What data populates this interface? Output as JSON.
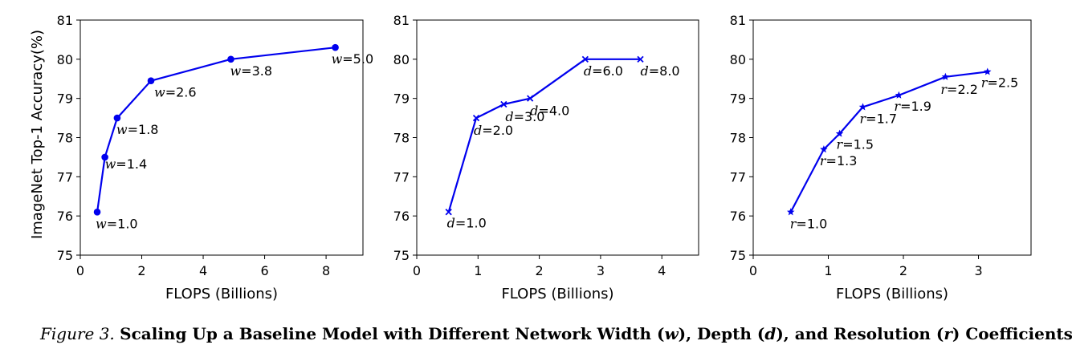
{
  "chart_data": [
    {
      "type": "line",
      "xlabel": "FLOPS (Billions)",
      "ylabel": "ImageNet Top-1 Accuracy(%)",
      "xlim": [
        0,
        9.2
      ],
      "ylim": [
        75,
        81
      ],
      "xticks": [
        0,
        2,
        4,
        6,
        8
      ],
      "yticks": [
        75,
        76,
        77,
        78,
        79,
        80,
        81
      ],
      "marker": "circle",
      "color": "#0000ee",
      "grid": false,
      "var": "w",
      "points": [
        {
          "x": 0.55,
          "y": 76.1,
          "label": "=1.0"
        },
        {
          "x": 0.8,
          "y": 77.5,
          "label": "=1.4"
        },
        {
          "x": 1.2,
          "y": 78.5,
          "label": "=1.8"
        },
        {
          "x": 2.3,
          "y": 79.45,
          "label": "=2.6"
        },
        {
          "x": 4.9,
          "y": 80.0,
          "label": "=3.8"
        },
        {
          "x": 8.3,
          "y": 80.3,
          "label": "=5.0"
        }
      ]
    },
    {
      "type": "line",
      "xlabel": "FLOPS (Billions)",
      "ylabel": "",
      "xlim": [
        0,
        4.6
      ],
      "ylim": [
        75,
        81
      ],
      "xticks": [
        0,
        1,
        2,
        3,
        4
      ],
      "yticks": [
        75,
        76,
        77,
        78,
        79,
        80,
        81
      ],
      "marker": "x",
      "color": "#0000ee",
      "grid": false,
      "var": "d",
      "points": [
        {
          "x": 0.52,
          "y": 76.1,
          "label": "=1.0"
        },
        {
          "x": 0.97,
          "y": 78.5,
          "label": "=2.0"
        },
        {
          "x": 1.42,
          "y": 78.85,
          "label": "=3.0"
        },
        {
          "x": 1.85,
          "y": 79.0,
          "label": "=4.0"
        },
        {
          "x": 2.75,
          "y": 80.0,
          "label": "=6.0"
        },
        {
          "x": 3.65,
          "y": 80.0,
          "label": "=8.0"
        }
      ]
    },
    {
      "type": "line",
      "xlabel": "FLOPS (Billions)",
      "ylabel": "",
      "xlim": [
        0,
        3.7
      ],
      "ylim": [
        75,
        81
      ],
      "xticks": [
        0,
        1,
        2,
        3
      ],
      "yticks": [
        75,
        76,
        77,
        78,
        79,
        80,
        81
      ],
      "marker": "star",
      "color": "#0000ee",
      "grid": false,
      "var": "r",
      "points": [
        {
          "x": 0.5,
          "y": 76.1,
          "label": "=1.0"
        },
        {
          "x": 0.94,
          "y": 77.7,
          "label": "=1.3"
        },
        {
          "x": 1.15,
          "y": 78.1,
          "label": "=1.5"
        },
        {
          "x": 1.46,
          "y": 78.78,
          "label": "=1.7"
        },
        {
          "x": 1.94,
          "y": 79.08,
          "label": "=1.9"
        },
        {
          "x": 2.56,
          "y": 79.55,
          "label": "=2.2"
        },
        {
          "x": 3.12,
          "y": 79.68,
          "label": "=2.5"
        }
      ]
    }
  ],
  "caption": {
    "label": "Figure 3.",
    "part1": "Scaling Up a Baseline Model with Different Network Width (",
    "var1": "w",
    "part2": "), Depth (",
    "var2": "d",
    "part3": "), and Resolution (",
    "var3": "r",
    "part4": ") Coefficients."
  }
}
